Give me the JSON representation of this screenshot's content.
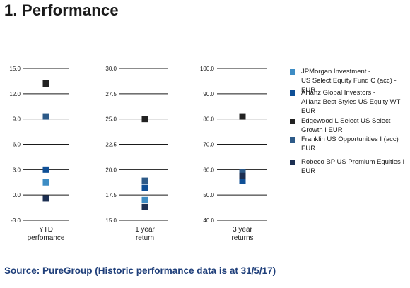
{
  "page": {
    "title": "1. Performance",
    "source": "Source: PureGroup (Historic performance data is at 31/5/17)"
  },
  "legend": [
    {
      "name": "JPMorgan Investment -\nUS Select Equity Fund C (acc) - EUR",
      "color": "#3d8cc4"
    },
    {
      "name": "Allianz Global Investors -\nAllianz Best Styles US Equity WT EUR",
      "color": "#0f4f96"
    },
    {
      "name": "Edgewood L Select US Select Growth I EUR",
      "color": "#222222"
    },
    {
      "name": "Franklin US Opportunities I (acc) EUR",
      "color": "#2d5a88"
    },
    {
      "name": "Robeco BP US Premium Equities I EUR",
      "color": "#1c2f52"
    }
  ],
  "chart_data": [
    {
      "type": "scatter",
      "xlabel": "YTD\nperfomance",
      "ylim": [
        -3.0,
        15.0
      ],
      "ticks": [
        "15.0",
        "12.0",
        "9.0",
        "6.0",
        "3.0",
        "0.0",
        "-3.0"
      ],
      "tick_values": [
        15,
        12,
        9,
        6,
        3,
        0,
        -3
      ],
      "series": [
        {
          "name": "JPMorgan Investment -\nUS Select Equity Fund C (acc) - EUR",
          "values": [
            1.5
          ]
        },
        {
          "name": "Allianz Global Investors -\nAllianz Best Styles US Equity WT EUR",
          "values": [
            3.0
          ]
        },
        {
          "name": "Edgewood L Select US Select Growth I EUR",
          "values": [
            13.2
          ]
        },
        {
          "name": "Franklin US Opportunities I (acc) EUR",
          "values": [
            9.3
          ]
        },
        {
          "name": "Robeco BP US Premium Equities I EUR",
          "values": [
            -0.4
          ]
        }
      ]
    },
    {
      "type": "scatter",
      "xlabel": "1 year\nreturn",
      "ylim": [
        15.0,
        30.0
      ],
      "ticks": [
        "30.0",
        "27.5",
        "25.0",
        "22.5",
        "20.0",
        "17.5",
        "15.0"
      ],
      "tick_values": [
        30,
        27.5,
        25,
        22.5,
        20,
        17.5,
        15
      ],
      "series": [
        {
          "name": "JPMorgan Investment -\nUS Select Equity Fund C (acc) - EUR",
          "values": [
            17.0
          ]
        },
        {
          "name": "Allianz Global Investors -\nAllianz Best Styles US Equity WT EUR",
          "values": [
            18.2
          ]
        },
        {
          "name": "Edgewood L Select US Select Growth I EUR",
          "values": [
            25.0
          ]
        },
        {
          "name": "Franklin US Opportunities I (acc) EUR",
          "values": [
            18.9
          ]
        },
        {
          "name": "Robeco BP US Premium Equities I EUR",
          "values": [
            16.3
          ]
        }
      ]
    },
    {
      "type": "scatter",
      "xlabel": "3 year\nreturns",
      "ylim": [
        40.0,
        100.0
      ],
      "ticks": [
        "100.0",
        "90.0",
        "80.0",
        "70.0",
        "60.0",
        "50.0",
        "40.0"
      ],
      "tick_values": [
        100,
        90,
        80,
        70,
        60,
        50,
        40
      ],
      "series": [
        {
          "name": "JPMorgan Investment -\nUS Select Equity Fund C (acc) - EUR",
          "values": [
            56.5
          ]
        },
        {
          "name": "Allianz Global Investors -\nAllianz Best Styles US Equity WT EUR",
          "values": [
            55.5
          ]
        },
        {
          "name": "Edgewood L Select US Select Growth I EUR",
          "values": [
            81.0
          ]
        },
        {
          "name": "Franklin US Opportunities I (acc) EUR",
          "values": [
            59.0
          ]
        },
        {
          "name": "Robeco BP US Premium Equities I EUR",
          "values": [
            57.5
          ]
        }
      ]
    }
  ]
}
